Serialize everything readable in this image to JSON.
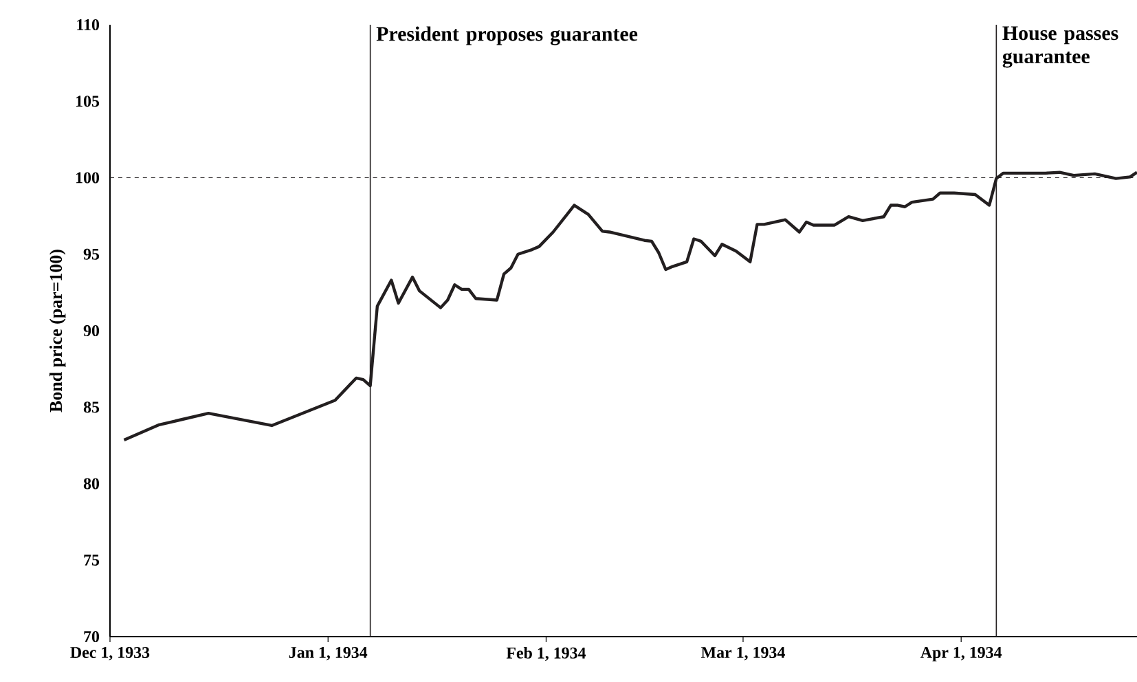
{
  "chart_data": {
    "type": "line",
    "ylabel": "Bond price (par=100)",
    "color": "#231f20",
    "x": [
      "1933-12-03",
      "1933-12-08",
      "1933-12-15",
      "1933-12-24",
      "1934-01-02",
      "1934-01-05",
      "1934-01-06",
      "1934-01-07",
      "1934-01-08",
      "1934-01-10",
      "1934-01-11",
      "1934-01-13",
      "1934-01-14",
      "1934-01-17",
      "1934-01-18",
      "1934-01-19",
      "1934-01-20",
      "1934-01-21",
      "1934-01-22",
      "1934-01-25",
      "1934-01-26",
      "1934-01-27",
      "1934-01-28",
      "1934-01-30",
      "1934-01-31",
      "1934-02-02",
      "1934-02-05",
      "1934-02-07",
      "1934-02-09",
      "1934-02-10",
      "1934-02-15",
      "1934-02-16",
      "1934-02-17",
      "1934-02-18",
      "1934-02-19",
      "1934-02-21",
      "1934-02-22",
      "1934-02-23",
      "1934-02-25",
      "1934-02-26",
      "1934-02-28",
      "1934-03-02",
      "1934-03-03",
      "1934-03-04",
      "1934-03-07",
      "1934-03-09",
      "1934-03-10",
      "1934-03-11",
      "1934-03-14",
      "1934-03-16",
      "1934-03-18",
      "1934-03-21",
      "1934-03-22",
      "1934-03-23",
      "1934-03-24",
      "1934-03-25",
      "1934-03-28",
      "1934-03-29",
      "1934-03-31",
      "1934-04-03",
      "1934-04-05",
      "1934-04-06",
      "1934-04-07",
      "1934-04-13",
      "1934-04-15",
      "1934-04-17",
      "1934-04-20",
      "1934-04-23",
      "1934-04-25",
      "1934-04-26"
    ],
    "values": [
      82.85,
      83.85,
      84.6,
      83.8,
      85.45,
      86.9,
      86.8,
      86.4,
      91.6,
      93.3,
      91.8,
      93.5,
      92.6,
      91.5,
      92.0,
      93.0,
      92.7,
      92.7,
      92.1,
      92.0,
      93.7,
      94.1,
      95.0,
      95.3,
      95.5,
      96.45,
      98.2,
      97.6,
      96.5,
      96.45,
      95.9,
      95.85,
      95.1,
      94.0,
      94.2,
      94.5,
      96.0,
      95.85,
      94.9,
      95.65,
      95.2,
      94.5,
      96.95,
      96.95,
      97.25,
      96.45,
      97.1,
      96.9,
      96.9,
      97.45,
      97.2,
      97.45,
      98.2,
      98.2,
      98.1,
      98.4,
      98.6,
      99.0,
      99.0,
      98.9,
      98.2,
      99.95,
      100.3,
      100.3,
      100.35,
      100.15,
      100.25,
      99.95,
      100.05,
      100.35
    ],
    "xlim": [
      "1933-12-01",
      "1934-04-26"
    ],
    "xticks": [
      {
        "value": "1933-12-01",
        "label": "Dec 1, 1933"
      },
      {
        "value": "1934-01-01",
        "label": "Jan 1, 1934"
      },
      {
        "value": "1934-02-01",
        "label": "Feb 1, 1934"
      },
      {
        "value": "1934-03-01",
        "label": "Mar 1, 1934"
      },
      {
        "value": "1934-04-01",
        "label": "Apr 1, 1934"
      }
    ],
    "ylim": [
      70,
      110
    ],
    "yticks": [
      70,
      75,
      80,
      85,
      90,
      95,
      100,
      105,
      110
    ],
    "ref_lines": [
      {
        "axis": "y",
        "value": 100,
        "line_style": "dashed",
        "color": "#231f20"
      },
      {
        "axis": "x",
        "value": "1934-01-07",
        "label": "President proposes guarantee",
        "color": "#231f20"
      },
      {
        "axis": "x",
        "value": "1934-04-06",
        "label": "House passes guarantee",
        "color": "#231f20"
      }
    ]
  }
}
